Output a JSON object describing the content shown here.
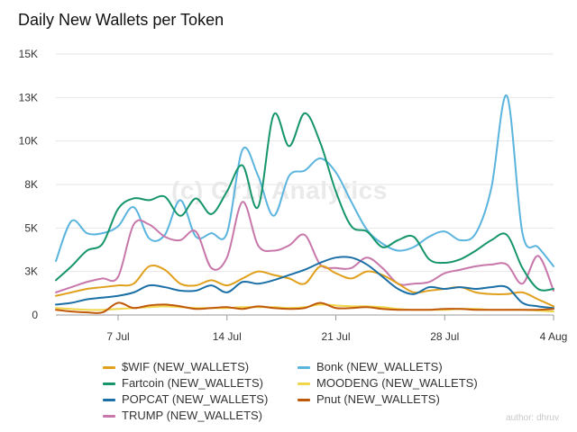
{
  "title": "Daily New Wallets per Token",
  "watermark": "(c) Gr1t Analytics",
  "author": "author: dhruv",
  "chart_data": {
    "type": "line",
    "title": "Daily New Wallets per Token",
    "ylim": [
      0,
      15000
    ],
    "y_ticks": [
      0,
      2500,
      5000,
      7500,
      10000,
      12500,
      15000
    ],
    "y_tick_labels": [
      "0",
      "3K",
      "5K",
      "8K",
      "10K",
      "13K",
      "15K"
    ],
    "x_range": [
      "2024-07-03",
      "2024-08-04"
    ],
    "x_ticks": [
      "2024-07-07",
      "2024-07-14",
      "2024-07-21",
      "2024-07-28",
      "2024-08-04"
    ],
    "x_tick_labels": [
      "7 Jul",
      "14 Jul",
      "21 Jul",
      "28 Jul",
      "4 Aug"
    ],
    "grid": true,
    "legend": "bottom",
    "x": [
      "2024-07-03",
      "2024-07-04",
      "2024-07-05",
      "2024-07-06",
      "2024-07-07",
      "2024-07-08",
      "2024-07-09",
      "2024-07-10",
      "2024-07-11",
      "2024-07-12",
      "2024-07-13",
      "2024-07-14",
      "2024-07-15",
      "2024-07-16",
      "2024-07-17",
      "2024-07-18",
      "2024-07-19",
      "2024-07-20",
      "2024-07-21",
      "2024-07-22",
      "2024-07-23",
      "2024-07-24",
      "2024-07-25",
      "2024-07-26",
      "2024-07-27",
      "2024-07-28",
      "2024-07-29",
      "2024-07-30",
      "2024-07-31",
      "2024-08-01",
      "2024-08-02",
      "2024-08-03",
      "2024-08-04"
    ],
    "series": [
      {
        "name": "$WIF (NEW_WALLETS)",
        "color": "#e0a01c",
        "values": [
          1100,
          1300,
          1500,
          1600,
          1700,
          1800,
          2800,
          2600,
          1800,
          1700,
          2000,
          1700,
          2100,
          2500,
          2300,
          2100,
          1800,
          2800,
          2400,
          2100,
          2500,
          2300,
          1800,
          1300,
          1400,
          1500,
          1600,
          1300,
          1200,
          1200,
          1300,
          900,
          500
        ]
      },
      {
        "name": "Bonk (NEW_WALLETS)",
        "color": "#5ab4de",
        "values": [
          3100,
          5400,
          4700,
          4700,
          5100,
          6200,
          4400,
          4600,
          6600,
          4500,
          4700,
          4700,
          9500,
          8000,
          5700,
          8000,
          8300,
          9000,
          8200,
          6500,
          4900,
          4100,
          3700,
          3900,
          4500,
          4800,
          4300,
          4700,
          7300,
          12600,
          4700,
          3900,
          2800
        ]
      },
      {
        "name": "Fartcoin (NEW_WALLETS)",
        "color": "#16956b",
        "values": [
          2000,
          2800,
          3700,
          4100,
          6100,
          6700,
          6600,
          6800,
          5700,
          6700,
          5800,
          7100,
          8600,
          6200,
          11500,
          9700,
          11600,
          9900,
          7100,
          5100,
          4800,
          3900,
          4300,
          4500,
          3200,
          3000,
          3200,
          3700,
          4300,
          4600,
          2700,
          1500,
          1500
        ]
      },
      {
        "name": "MOODENG (NEW_WALLETS)",
        "color": "#f0d64a",
        "values": [
          400,
          350,
          300,
          300,
          350,
          400,
          450,
          500,
          450,
          400,
          400,
          400,
          450,
          450,
          450,
          400,
          450,
          600,
          550,
          500,
          500,
          450,
          350,
          300,
          300,
          300,
          350,
          350,
          300,
          300,
          300,
          250,
          200
        ]
      },
      {
        "name": "POPCAT (NEW_WALLETS)",
        "color": "#1a6fa6",
        "values": [
          600,
          700,
          900,
          1000,
          1100,
          1300,
          1700,
          1600,
          1400,
          1400,
          1700,
          1300,
          1900,
          1800,
          2000,
          2300,
          2600,
          3000,
          3300,
          3300,
          2900,
          2200,
          1500,
          1200,
          1600,
          1500,
          1600,
          1500,
          1600,
          1600,
          700,
          500,
          400
        ]
      },
      {
        "name": "Pnut (NEW_WALLETS)",
        "color": "#c0580a",
        "values": [
          300,
          200,
          150,
          150,
          700,
          400,
          550,
          600,
          500,
          350,
          400,
          450,
          350,
          500,
          400,
          350,
          400,
          700,
          400,
          400,
          450,
          350,
          300,
          300,
          300,
          350,
          350,
          300,
          300,
          300,
          300,
          300,
          350
        ]
      },
      {
        "name": "TRUMP (NEW_WALLETS)",
        "color": "#c877aa",
        "values": [
          1300,
          1600,
          1900,
          2100,
          2200,
          5200,
          5200,
          4500,
          4300,
          4800,
          2700,
          3300,
          6500,
          4000,
          3700,
          4000,
          4600,
          2900,
          2700,
          2700,
          3300,
          2700,
          1800,
          1800,
          1900,
          2400,
          2600,
          2800,
          2900,
          2900,
          1800,
          3400,
          1400
        ]
      }
    ]
  }
}
